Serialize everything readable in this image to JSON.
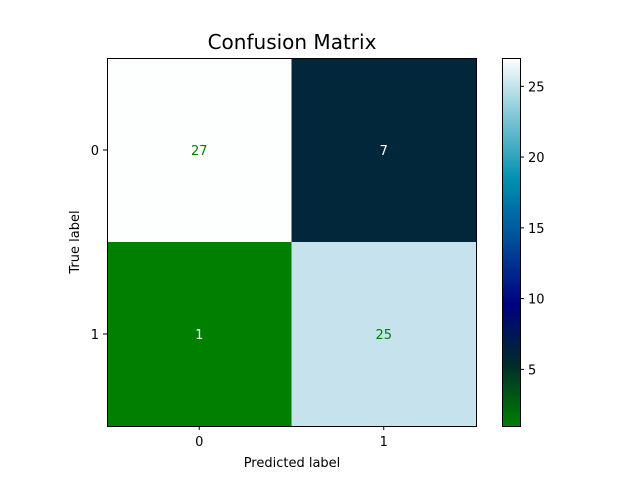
{
  "chart_data": {
    "type": "heatmap",
    "title": "Confusion Matrix",
    "xlabel": "Predicted label",
    "ylabel": "True label",
    "x_categories": [
      "0",
      "1"
    ],
    "y_categories": [
      "0",
      "1"
    ],
    "values": [
      [
        27,
        7
      ],
      [
        1,
        25
      ]
    ],
    "colormap": "ocean",
    "colorbar": {
      "vmin": 1,
      "vmax": 27,
      "ticks": [
        5,
        10,
        15,
        20,
        25
      ],
      "tick_labels": [
        "5",
        "10",
        "15",
        "20",
        "25"
      ]
    },
    "cell_colors": [
      [
        "#fdfefe",
        "#02263a"
      ],
      [
        "#007f00",
        "#c6e2ec"
      ]
    ],
    "value_label_colors": [
      [
        "#008000",
        "#ffffff"
      ],
      [
        "#ffffff",
        "#008000"
      ]
    ],
    "grid": false
  }
}
